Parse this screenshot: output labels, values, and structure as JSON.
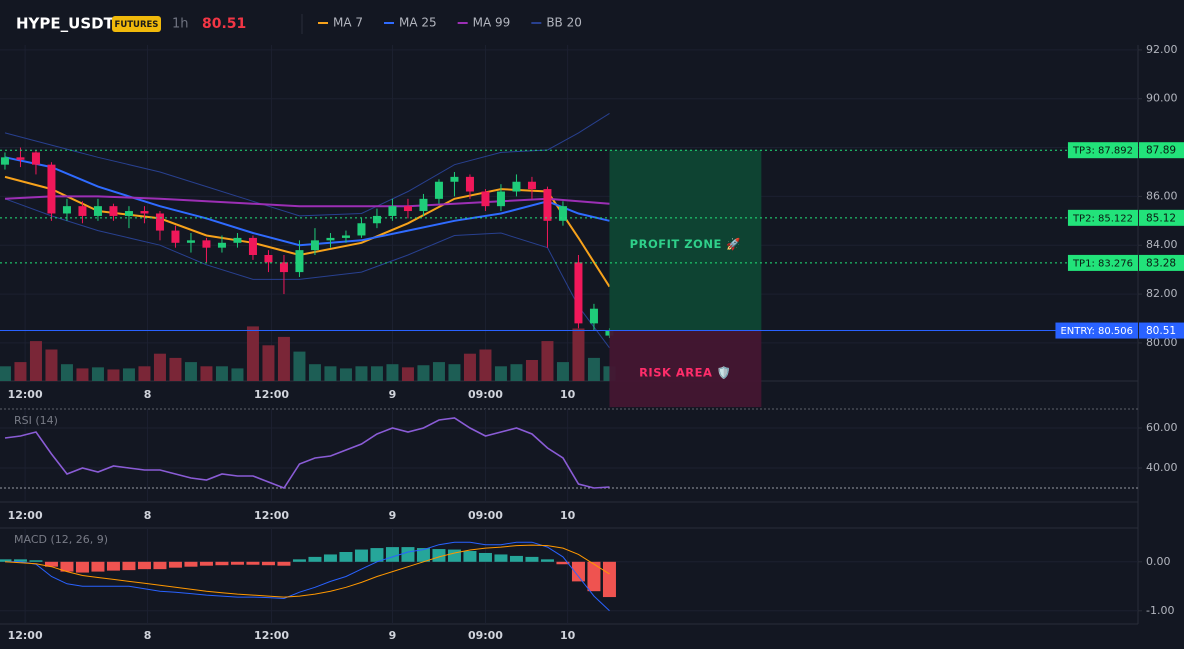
{
  "header": {
    "symbol": "HYPE_USDT",
    "badge": "FUTURES",
    "interval": "1h",
    "price": "80.51"
  },
  "chart_data": [
    {
      "type": "candlestick",
      "x": [
        0,
        1,
        2,
        3,
        4,
        5,
        6,
        7,
        8,
        9,
        10,
        11,
        12,
        13,
        14,
        15,
        16,
        17,
        18,
        19,
        20,
        21,
        22,
        23,
        24,
        25,
        26,
        27,
        28,
        29,
        30,
        31,
        32,
        33,
        34,
        35,
        36,
        37,
        38,
        39
      ],
      "open": [
        87.3,
        87.6,
        87.8,
        87.3,
        85.3,
        85.6,
        85.2,
        85.6,
        85.2,
        85.4,
        85.3,
        84.6,
        84.1,
        84.2,
        83.9,
        84.1,
        84.3,
        83.6,
        83.3,
        82.9,
        83.8,
        84.2,
        84.3,
        84.4,
        84.9,
        85.2,
        85.6,
        85.4,
        85.9,
        86.6,
        86.8,
        86.2,
        85.6,
        86.2,
        86.6,
        86.3,
        85.0,
        83.3,
        80.8,
        80.3
      ],
      "high": [
        87.8,
        88.0,
        87.9,
        87.4,
        85.9,
        85.8,
        85.9,
        85.7,
        85.6,
        85.6,
        85.4,
        84.8,
        84.5,
        84.3,
        84.4,
        84.5,
        84.4,
        83.8,
        83.6,
        84.2,
        84.7,
        84.5,
        84.6,
        85.1,
        85.5,
        85.9,
        85.9,
        86.1,
        86.7,
        87.0,
        86.9,
        86.3,
        86.5,
        86.9,
        86.8,
        86.4,
        85.8,
        83.6,
        81.6,
        80.6
      ],
      "low": [
        87.1,
        87.2,
        86.9,
        85.0,
        85.0,
        84.9,
        85.0,
        85.0,
        84.7,
        84.9,
        84.2,
        83.9,
        83.7,
        83.3,
        83.7,
        83.9,
        83.4,
        82.9,
        82.0,
        82.7,
        83.6,
        83.9,
        84.1,
        84.3,
        84.7,
        85.0,
        85.1,
        85.2,
        85.7,
        86.0,
        85.9,
        85.4,
        85.4,
        86.0,
        85.9,
        83.9,
        84.8,
        80.6,
        80.5,
        80.2
      ],
      "close": [
        87.6,
        87.5,
        87.3,
        85.3,
        85.6,
        85.2,
        85.6,
        85.2,
        85.4,
        85.3,
        84.6,
        84.1,
        84.2,
        83.9,
        84.1,
        84.3,
        83.6,
        83.3,
        82.9,
        83.8,
        84.2,
        84.3,
        84.4,
        84.9,
        85.2,
        85.6,
        85.4,
        85.9,
        86.6,
        86.8,
        86.2,
        85.6,
        86.2,
        86.6,
        86.3,
        85.0,
        85.6,
        80.8,
        81.4,
        80.51
      ],
      "volume": [
        14,
        18,
        38,
        30,
        16,
        12,
        13,
        11,
        12,
        14,
        26,
        22,
        18,
        14,
        14,
        12,
        52,
        34,
        42,
        28,
        16,
        14,
        12,
        14,
        14,
        16,
        13,
        15,
        18,
        16,
        26,
        30,
        14,
        16,
        20,
        38,
        18,
        50,
        22,
        14
      ],
      "volume_ylim": [
        0,
        320
      ],
      "up_color": "#1fcc79",
      "down_color": "#f0185a",
      "volume_up_color": "#1d5e55",
      "volume_down_color": "#7a2637",
      "xlim": [
        -0.32,
        73.1
      ],
      "xticks": [
        {
          "value": 1.3,
          "label": "12:00"
        },
        {
          "value": 9.2,
          "label": "8"
        },
        {
          "value": 17.2,
          "label": "12:00"
        },
        {
          "value": 25.0,
          "label": "9"
        },
        {
          "value": 31.0,
          "label": "09:00"
        },
        {
          "value": 36.3,
          "label": "10"
        }
      ],
      "ylim": [
        78.44,
        92.2
      ],
      "yticks": [
        {
          "value": 80,
          "label": "80.00"
        },
        {
          "value": 82,
          "label": "82.00"
        },
        {
          "value": 84,
          "label": "84.00"
        },
        {
          "value": 86,
          "label": "86.00"
        },
        {
          "value": 88,
          "label": "88.00"
        },
        {
          "value": 90,
          "label": "90.00"
        },
        {
          "value": 92,
          "label": "92.00"
        }
      ],
      "series": [
        {
          "name": "MA 7",
          "color": "#f7a21b",
          "x": [
            0,
            3,
            6,
            10,
            13,
            16,
            19,
            23,
            26,
            29,
            32,
            35,
            37,
            39
          ],
          "values": [
            86.8,
            86.3,
            85.4,
            85.1,
            84.4,
            84.1,
            83.6,
            84.1,
            84.9,
            85.9,
            86.3,
            86.2,
            84.3,
            82.3
          ]
        },
        {
          "name": "MA 25",
          "color": "#2f6bff",
          "x": [
            0,
            3,
            6,
            10,
            13,
            16,
            19,
            23,
            26,
            29,
            32,
            35,
            37,
            39
          ],
          "values": [
            87.6,
            87.2,
            86.4,
            85.6,
            85.1,
            84.5,
            84.0,
            84.2,
            84.6,
            85.0,
            85.3,
            85.8,
            85.3,
            85.0
          ]
        },
        {
          "name": "MA 99",
          "color": "#9c2fb5",
          "x": [
            0,
            3,
            6,
            10,
            13,
            16,
            19,
            23,
            26,
            29,
            32,
            35,
            37,
            39
          ],
          "values": [
            85.9,
            86.0,
            86.0,
            85.9,
            85.8,
            85.7,
            85.6,
            85.6,
            85.6,
            85.7,
            85.8,
            85.9,
            85.8,
            85.7
          ]
        }
      ],
      "bands": {
        "name": "BB 20",
        "color": "#28408f",
        "x": [
          0,
          3,
          6,
          10,
          13,
          16,
          19,
          23,
          26,
          29,
          32,
          35,
          37,
          39
        ],
        "upper": [
          88.6,
          88.1,
          87.6,
          87.0,
          86.4,
          85.8,
          85.2,
          85.3,
          86.2,
          87.3,
          87.8,
          87.9,
          88.6,
          89.4
        ],
        "lower": [
          85.9,
          85.2,
          84.6,
          84.0,
          83.2,
          82.6,
          82.6,
          82.9,
          83.6,
          84.4,
          84.5,
          83.9,
          81.5,
          79.8
        ]
      },
      "levels": [
        {
          "label": "TP3: 87.892",
          "value": 87.892,
          "axis_label": "87.89",
          "color": "#22e37a",
          "style": "dotted"
        },
        {
          "label": "TP2: 85.122",
          "value": 85.122,
          "axis_label": "85.12",
          "color": "#22e37a",
          "style": "dotted"
        },
        {
          "label": "TP1: 83.276",
          "value": 83.276,
          "axis_label": "83.28",
          "color": "#22e37a",
          "style": "dotted"
        },
        {
          "label": "ENTRY: 80.506",
          "value": 80.506,
          "axis_label": "80.51",
          "color": "#2962ff",
          "style": "solid"
        }
      ],
      "zones": [
        {
          "label": "PROFIT ZONE 🚀",
          "top": 87.892,
          "bottom": 80.506,
          "x": [
            39,
            48.8
          ],
          "color": "#0e4634",
          "text_color": "#2fd08a"
        },
        {
          "label": "RISK AREA 🛡️",
          "top": 80.506,
          "bottom": 77.37,
          "x": [
            39,
            48.8
          ],
          "color": "#431632",
          "text_color": "#ff2d6a"
        }
      ]
    },
    {
      "type": "line",
      "label": "RSI (14)",
      "x": [
        0,
        1,
        2,
        3,
        4,
        5,
        6,
        7,
        8,
        9,
        10,
        11,
        12,
        13,
        14,
        15,
        16,
        17,
        18,
        19,
        20,
        21,
        22,
        23,
        24,
        25,
        26,
        27,
        28,
        29,
        30,
        31,
        32,
        33,
        34,
        35,
        36,
        37,
        38,
        39
      ],
      "xlim": [
        -0.32,
        73.1
      ],
      "xticks": [
        {
          "value": 1.3,
          "label": "12:00"
        },
        {
          "value": 9.2,
          "label": "8"
        },
        {
          "value": 17.2,
          "label": "12:00"
        },
        {
          "value": 25.0,
          "label": "9"
        },
        {
          "value": 31.0,
          "label": "09:00"
        },
        {
          "value": 36.3,
          "label": "10"
        }
      ],
      "ylim": [
        23,
        69.5
      ],
      "yticks": [
        {
          "value": 40,
          "label": "40.00"
        },
        {
          "value": 60,
          "label": "60.00"
        }
      ],
      "levels": [
        30
      ],
      "series": [
        {
          "color": "#8a5cd6",
          "values": [
            55,
            56,
            58,
            47,
            37,
            40,
            38,
            41,
            40,
            39,
            39,
            37,
            35,
            34,
            37,
            36,
            36,
            33,
            30,
            42,
            45,
            46,
            49,
            52,
            57,
            60,
            58,
            60,
            64,
            65,
            60,
            56,
            58,
            60,
            57,
            50,
            45,
            32,
            30,
            30.5
          ]
        }
      ]
    },
    {
      "type": "macd",
      "label": "MACD (12, 26, 9)",
      "x": [
        0,
        1,
        2,
        3,
        4,
        5,
        6,
        7,
        8,
        9,
        10,
        11,
        12,
        13,
        14,
        15,
        16,
        17,
        18,
        19,
        20,
        21,
        22,
        23,
        24,
        25,
        26,
        27,
        28,
        29,
        30,
        31,
        32,
        33,
        34,
        35,
        36,
        37,
        38,
        39
      ],
      "xlim": [
        -0.32,
        73.1
      ],
      "xticks": [
        {
          "value": 1.3,
          "label": "12:00"
        },
        {
          "value": 9.2,
          "label": "8"
        },
        {
          "value": 17.2,
          "label": "12:00"
        },
        {
          "value": 25.0,
          "label": "9"
        },
        {
          "value": 31.0,
          "label": "09:00"
        },
        {
          "value": 36.3,
          "label": "10"
        }
      ],
      "ylim": [
        -1.27,
        0.69
      ],
      "yticks": [
        {
          "value": -1,
          "label": "-1.00"
        },
        {
          "value": 0,
          "label": "0.00"
        }
      ],
      "histogram": {
        "up_color": "#26a69a",
        "down_color": "#ef5350",
        "values": [
          0.05,
          0.05,
          0.03,
          -0.1,
          -0.2,
          -0.22,
          -0.2,
          -0.18,
          -0.17,
          -0.15,
          -0.15,
          -0.12,
          -0.1,
          -0.08,
          -0.07,
          -0.06,
          -0.06,
          -0.07,
          -0.08,
          0.05,
          0.1,
          0.15,
          0.2,
          0.25,
          0.28,
          0.3,
          0.3,
          0.28,
          0.26,
          0.25,
          0.22,
          0.18,
          0.15,
          0.12,
          0.1,
          0.05,
          -0.05,
          -0.4,
          -0.6,
          -0.72
        ]
      },
      "series": [
        {
          "color": "#2962ff",
          "values": [
            0.0,
            0.0,
            -0.05,
            -0.3,
            -0.45,
            -0.5,
            -0.5,
            -0.5,
            -0.5,
            -0.55,
            -0.6,
            -0.62,
            -0.65,
            -0.68,
            -0.7,
            -0.72,
            -0.72,
            -0.73,
            -0.75,
            -0.62,
            -0.52,
            -0.4,
            -0.3,
            -0.15,
            0.0,
            0.1,
            0.2,
            0.25,
            0.35,
            0.4,
            0.4,
            0.35,
            0.35,
            0.4,
            0.4,
            0.3,
            0.1,
            -0.3,
            -0.7,
            -1.0
          ]
        },
        {
          "color": "#ff9800",
          "values": [
            0.0,
            -0.02,
            -0.04,
            -0.1,
            -0.2,
            -0.28,
            -0.32,
            -0.36,
            -0.4,
            -0.44,
            -0.48,
            -0.52,
            -0.56,
            -0.6,
            -0.63,
            -0.66,
            -0.68,
            -0.7,
            -0.72,
            -0.7,
            -0.66,
            -0.6,
            -0.52,
            -0.42,
            -0.3,
            -0.2,
            -0.1,
            0.0,
            0.1,
            0.18,
            0.24,
            0.28,
            0.3,
            0.33,
            0.34,
            0.33,
            0.28,
            0.15,
            -0.05,
            -0.25
          ]
        }
      ]
    }
  ]
}
